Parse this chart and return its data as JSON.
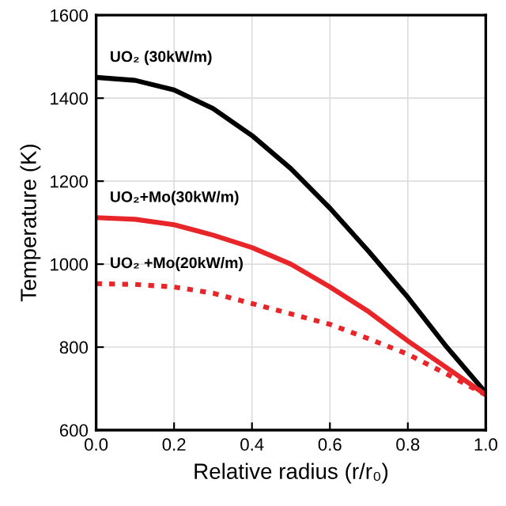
{
  "chart_data": {
    "type": "line",
    "xlabel": "Relative radius (r/r₀)",
    "ylabel": "Temperature (K)",
    "x": [
      0,
      0.1,
      0.2,
      0.3,
      0.4,
      0.5,
      0.6,
      0.7,
      0.8,
      0.9,
      1.0
    ],
    "series": [
      {
        "name": "UO₂ (30kW/m)",
        "color": "#000000",
        "line_style": "solid",
        "values": [
          1450,
          1443,
          1420,
          1375,
          1310,
          1230,
          1135,
          1030,
          920,
          800,
          690
        ]
      },
      {
        "name": "UO₂+Mo(30kW/m)",
        "color": "#e8262a",
        "line_style": "solid",
        "values": [
          1112,
          1108,
          1095,
          1070,
          1040,
          1000,
          945,
          885,
          815,
          750,
          685
        ]
      },
      {
        "name": "UO₂ +Mo(20kW/m)",
        "color": "#e8262a",
        "line_style": "dotted",
        "values": [
          953,
          951,
          945,
          930,
          905,
          880,
          855,
          820,
          783,
          735,
          685
        ]
      }
    ],
    "xlim": [
      0,
      1.0
    ],
    "xticks": [
      {
        "value": 0,
        "label": "0.0"
      },
      0.2,
      0.4,
      0.6,
      0.8,
      {
        "value": 1.0,
        "label": "1.0"
      }
    ],
    "ylim": [
      600,
      1600
    ],
    "yticks": [
      600,
      800,
      1000,
      1200,
      1400,
      1600
    ],
    "grid": true
  }
}
